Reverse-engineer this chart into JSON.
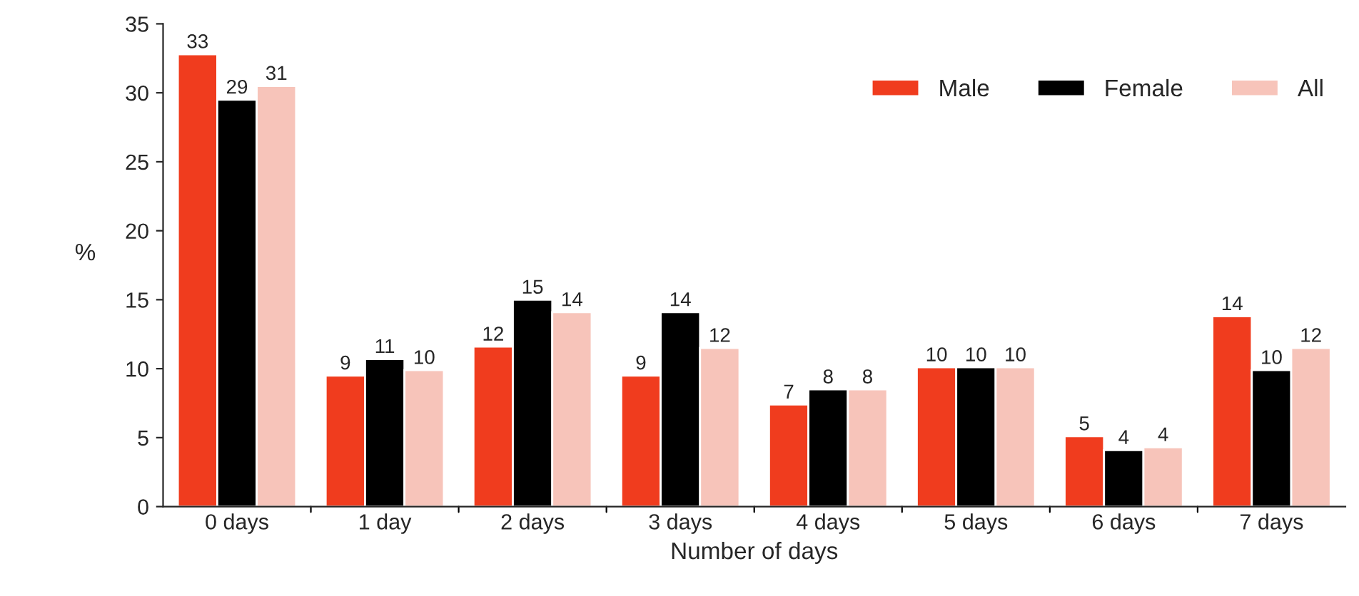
{
  "chart_data": {
    "type": "bar",
    "xlabel": "Number of days",
    "ylabel": "%",
    "categories": [
      "0 days",
      "1 day",
      "2 days",
      "3 days",
      "4 days",
      "5 days",
      "6 days",
      "7 days"
    ],
    "series": [
      {
        "name": "Male",
        "color": "#f03c1e",
        "values": [
          32.8,
          9.5,
          11.6,
          9.5,
          7.4,
          10.1,
          5.1,
          13.8
        ],
        "value_labels": [
          "33",
          "9",
          "12",
          "9",
          "7",
          "10",
          "5",
          "14"
        ]
      },
      {
        "name": "Female",
        "color": "#000000",
        "values": [
          29.5,
          10.7,
          15.0,
          14.1,
          8.5,
          10.1,
          4.1,
          9.9
        ],
        "value_labels": [
          "29",
          "11",
          "15",
          "14",
          "8",
          "10",
          "4",
          "10"
        ]
      },
      {
        "name": "All",
        "color": "#f7c4ba",
        "values": [
          30.5,
          9.9,
          14.1,
          11.5,
          8.5,
          10.1,
          4.3,
          11.5
        ],
        "value_labels": [
          "31",
          "10",
          "14",
          "12",
          "8",
          "10",
          "4",
          "12"
        ]
      }
    ],
    "ylim": [
      0,
      35
    ],
    "yticks": [
      0,
      5,
      10,
      15,
      20,
      25,
      30,
      35
    ],
    "legend": "top right",
    "grid": false
  }
}
